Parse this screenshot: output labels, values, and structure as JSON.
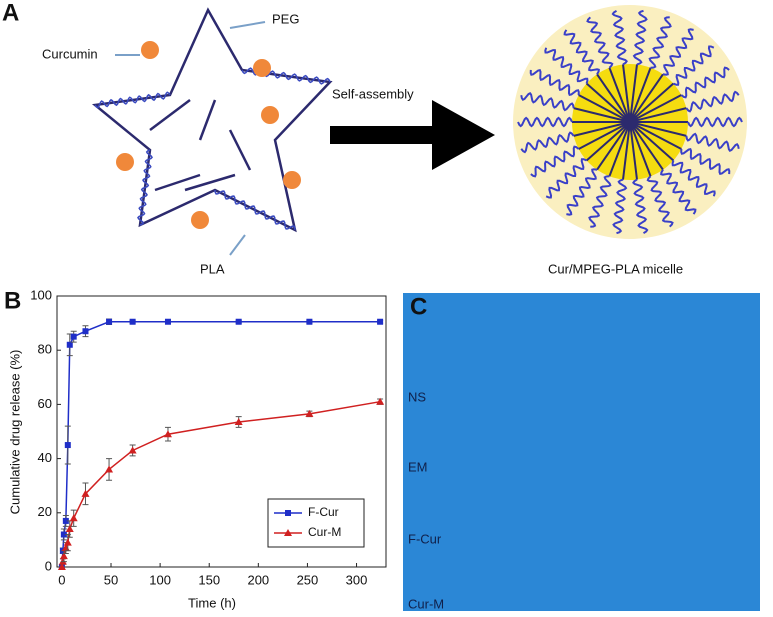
{
  "panel_a": {
    "label": "A",
    "curcumin": "Curcumin",
    "peg": "PEG",
    "pla": "PLA",
    "arrow": "Self-assembly",
    "micelle": "Cur/MPEG-PLA micelle"
  },
  "chart_data": {
    "type": "line",
    "panel_label": "B",
    "x_label": "Time (h)",
    "y_label": "Cumulative drug release (%)",
    "x": [
      0,
      1,
      2,
      4,
      6,
      8,
      12,
      24,
      48,
      72,
      108,
      180,
      252,
      324
    ],
    "series": [
      {
        "name": "F-Cur",
        "color": "#1f2ec8",
        "marker": "square",
        "values": [
          0,
          6,
          12,
          17,
          45,
          82,
          85,
          87,
          90.5,
          90.5,
          90.5,
          90.5,
          90.5,
          90.5
        ],
        "errors": [
          0,
          1,
          2,
          2,
          7,
          4,
          2,
          2,
          1,
          0.5,
          0.5,
          0.5,
          0.5,
          0.5
        ]
      },
      {
        "name": "Cur-M",
        "color": "#d02020",
        "marker": "triangle",
        "values": [
          0,
          2,
          4,
          7,
          9,
          14,
          18,
          27,
          36,
          43,
          49,
          53.5,
          56.5,
          61
        ],
        "errors": [
          0,
          1,
          2,
          2,
          3,
          3,
          3,
          4,
          4,
          2,
          2.5,
          2,
          1,
          1
        ]
      }
    ],
    "xlim": [
      -5,
      330
    ],
    "xticks": [
      0,
      50,
      100,
      150,
      200,
      250,
      300
    ],
    "ylim": [
      0,
      100
    ],
    "yticks": [
      0,
      20,
      40,
      60,
      80,
      100
    ],
    "legend": "lower right"
  },
  "panel_c": {
    "label": "C",
    "rows": [
      "NS",
      "EM",
      "F-Cur",
      "Cur-M"
    ]
  }
}
